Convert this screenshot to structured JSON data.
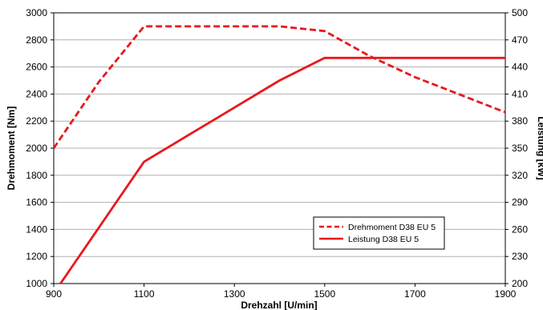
{
  "chart_data": {
    "type": "line",
    "xlabel": "Drehzahl [U/min]",
    "ylabel": "Drehmoment [Nm]",
    "y2label": "Leistung [kW]",
    "xlim": [
      900,
      1900
    ],
    "ylim": [
      1000,
      3000
    ],
    "y2lim": [
      200,
      500
    ],
    "x_ticks": [
      900,
      1100,
      1300,
      1500,
      1700,
      1900
    ],
    "y_ticks": [
      1000,
      1200,
      1400,
      1600,
      1800,
      2000,
      2200,
      2400,
      2600,
      2800,
      3000
    ],
    "y2_ticks": [
      200,
      230,
      260,
      290,
      320,
      350,
      380,
      410,
      440,
      470,
      500
    ],
    "grid": "horizontal",
    "legend_position": "bottom-right",
    "series": [
      {
        "name": "Drehmoment D38 EU 5",
        "axis": "left",
        "style": "dashed",
        "color": "#e8181c",
        "x": [
          900,
          1000,
          1100,
          1200,
          1300,
          1400,
          1500,
          1600,
          1700,
          1800,
          1900
        ],
        "values": [
          2000,
          2490,
          2900,
          2900,
          2900,
          2900,
          2865,
          2680,
          2525,
          2395,
          2265
        ]
      },
      {
        "name": "Leistung D38 EU 5",
        "axis": "right",
        "style": "solid",
        "color": "#e8181c",
        "x": [
          915,
          1100,
          1200,
          1300,
          1400,
          1500,
          1600,
          1700,
          1800,
          1900
        ],
        "values": [
          200,
          335,
          365,
          395,
          425,
          450,
          450,
          450,
          450,
          450
        ]
      }
    ]
  }
}
